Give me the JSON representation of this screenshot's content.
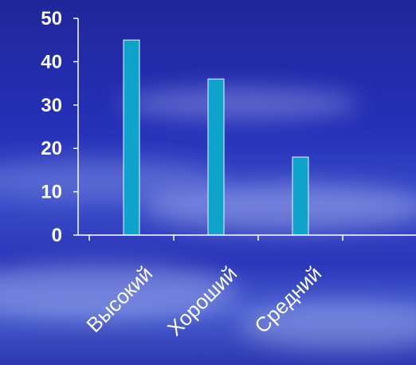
{
  "colors": {
    "bar_fill": "#0fa3cc",
    "bar_stroke": "#e8f6ff",
    "axis": "#ffffff",
    "text": "#ffffff"
  },
  "chart_data": {
    "type": "bar",
    "categories": [
      "Высокий",
      "Хороший",
      "Средний",
      ""
    ],
    "values": [
      45,
      36,
      18,
      null
    ],
    "title": "",
    "xlabel": "",
    "ylabel": "",
    "ylim": [
      0,
      50
    ],
    "yticks": [
      "0",
      "10",
      "20",
      "30",
      "40",
      "50"
    ],
    "grid": false,
    "legend": "none"
  }
}
